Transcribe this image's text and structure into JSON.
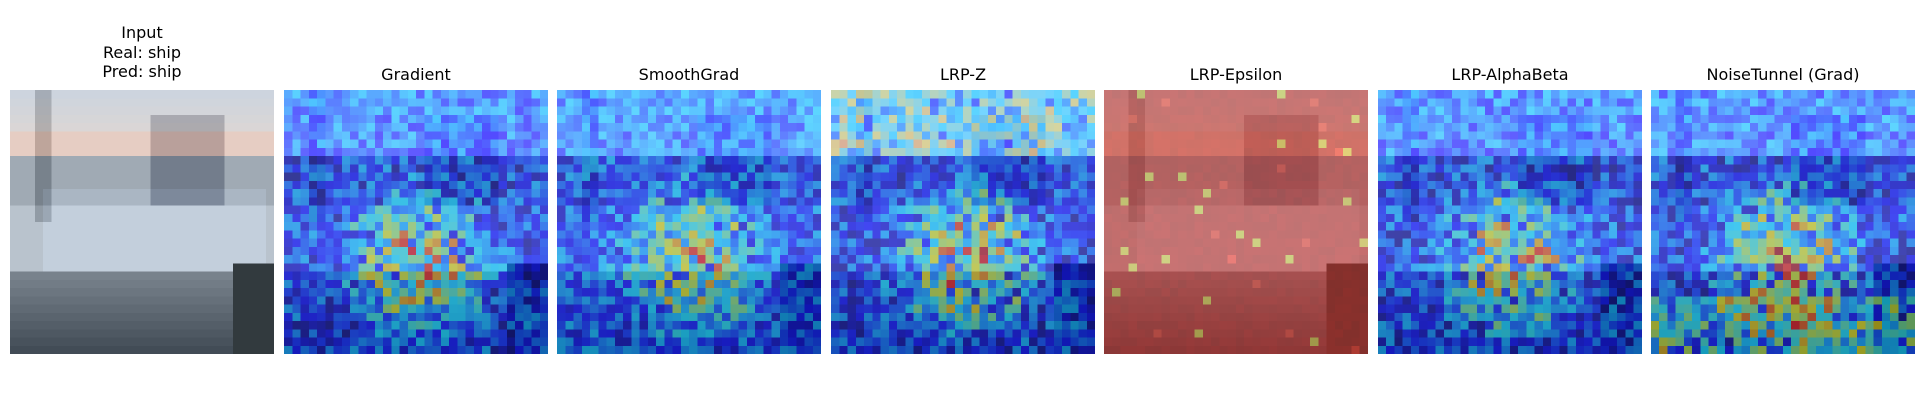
{
  "panels": [
    {
      "id": "input",
      "title_lines": [
        "Input",
        "Real: ship",
        "Pred: ship"
      ],
      "overlay": "none"
    },
    {
      "id": "gradient",
      "title_lines": [
        "Gradient"
      ],
      "overlay": "jet"
    },
    {
      "id": "smoothgrad",
      "title_lines": [
        "SmoothGrad"
      ],
      "overlay": "jet"
    },
    {
      "id": "lrp-z",
      "title_lines": [
        "LRP-Z"
      ],
      "overlay": "jet"
    },
    {
      "id": "lrp-epsilon",
      "title_lines": [
        "LRP-Epsilon"
      ],
      "overlay": "red"
    },
    {
      "id": "lrp-alphabeta",
      "title_lines": [
        "LRP-AlphaBeta"
      ],
      "overlay": "jet"
    },
    {
      "id": "noisetunnel-grad",
      "title_lines": [
        "NoiseTunnel (Grad)"
      ],
      "overlay": "jet"
    }
  ]
}
